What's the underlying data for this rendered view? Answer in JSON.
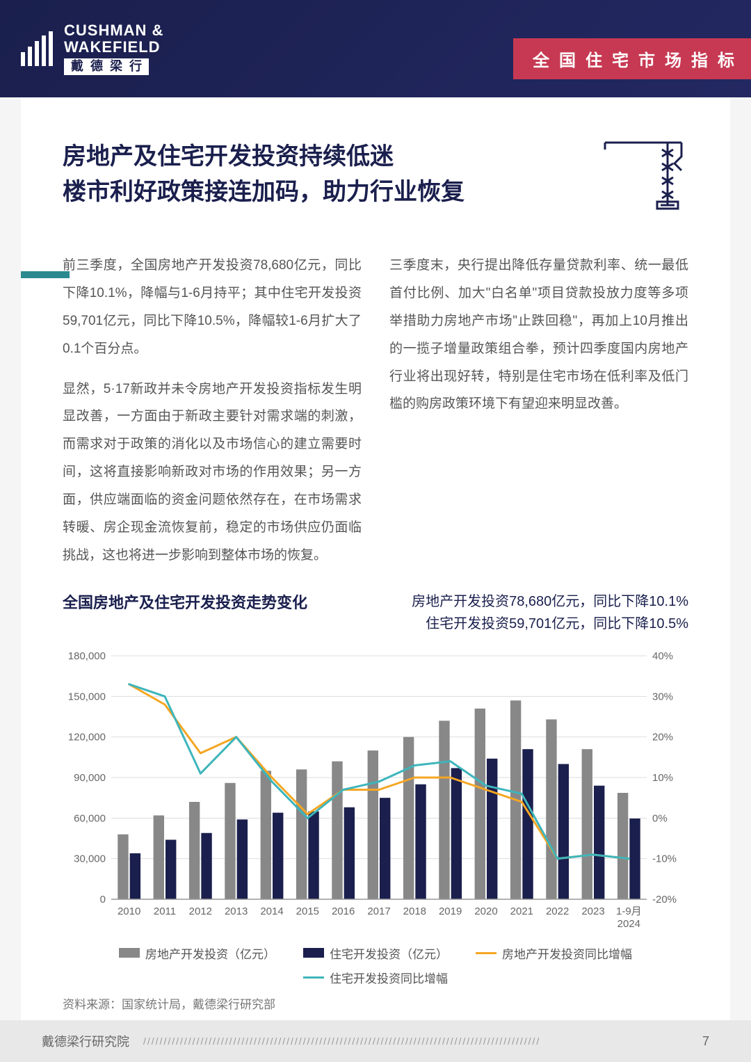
{
  "header": {
    "logo_en1": "CUSHMAN &",
    "logo_en2": "WAKEFIELD",
    "logo_cn": "戴德梁行",
    "tag": "全国住宅市场指标"
  },
  "title": {
    "line1": "房地产及住宅开发投资持续低迷",
    "line2": "楼市利好政策接连加码，助力行业恢复"
  },
  "body": {
    "p1": "前三季度，全国房地产开发投资78,680亿元，同比下降10.1%，降幅与1-6月持平；其中住宅开发投资59,701亿元，同比下降10.5%，降幅较1-6月扩大了0.1个百分点。",
    "p2": "显然，5·17新政并未令房地产开发投资指标发生明显改善，一方面由于新政主要针对需求端的刺激，而需求对于政策的消化以及市场信心的建立需要时间，这将直接影响新政对市场的作用效果；另一方面，供应端面临的资金问题依然存在，在市场需求转暖、房企现金流恢复前，稳定的市场供应仍面临挑战，这也将进一步影响到整体市场的恢复。",
    "p3": "三季度末，央行提出降低存量贷款利率、统一最低首付比例、加大\"白名单\"项目贷款投放力度等多项举措助力房地产市场\"止跌回稳\"，再加上10月推出的一揽子增量政策组合拳，预计四季度国内房地产行业将出现好转，特别是住宅市场在低利率及低门槛的购房政策环境下有望迎来明显改善。"
  },
  "chart": {
    "title_left": "全国房地产及住宅开发投资走势变化",
    "title_right_1": "房地产开发投资78,680亿元，同比下降10.1%",
    "title_right_2": "住宅开发投资59,701亿元，同比下降10.5%",
    "type": "combo-bar-line",
    "categories": [
      "2010",
      "2011",
      "2012",
      "2013",
      "2014",
      "2015",
      "2016",
      "2017",
      "2018",
      "2019",
      "2020",
      "2021",
      "2022",
      "2023",
      "1-9月\n2024"
    ],
    "y_left_ticks": [
      0,
      30000,
      60000,
      90000,
      120000,
      150000,
      180000
    ],
    "y_left_labels": [
      "0",
      "30,000",
      "60,000",
      "90,000",
      "120,000",
      "150,000",
      "180,000"
    ],
    "y_right_ticks": [
      -20,
      -10,
      0,
      10,
      20,
      30,
      40
    ],
    "y_right_labels": [
      "-20%",
      "-10%",
      "0%",
      "10%",
      "20%",
      "30%",
      "40%"
    ],
    "series": {
      "re_inv": {
        "label": "房地产开发投资（亿元）",
        "color": "#888888",
        "type": "bar",
        "values": [
          48000,
          62000,
          72000,
          86000,
          95000,
          96000,
          102000,
          110000,
          120000,
          132000,
          141000,
          147000,
          133000,
          111000,
          78680
        ]
      },
      "res_inv": {
        "label": "住宅开发投资（亿元）",
        "color": "#1a1f4d",
        "type": "bar",
        "values": [
          34000,
          44000,
          49000,
          59000,
          64000,
          65000,
          68000,
          75000,
          85000,
          97000,
          104000,
          111000,
          100000,
          84000,
          59701
        ]
      },
      "re_yoy": {
        "label": "房地产开发投资同比增幅",
        "color": "#f5a623",
        "type": "line",
        "values": [
          33,
          28,
          16,
          20,
          10,
          1,
          7,
          7,
          10,
          10,
          7,
          4,
          -10,
          -9,
          -10
        ]
      },
      "res_yoy": {
        "label": "住宅开发投资同比增幅",
        "color": "#3db5bb",
        "type": "line",
        "values": [
          33,
          30,
          11,
          20,
          9,
          0,
          7,
          9,
          13,
          14,
          8,
          6,
          -10,
          -9,
          -10
        ]
      }
    },
    "y_left_max": 180000,
    "y_right_min": -20,
    "y_right_max": 40,
    "grid_color": "#dddddd",
    "axis_color": "#999999",
    "label_color": "#666666",
    "label_fontsize": 15,
    "source": "资料来源：国家统计局，戴德梁行研究部"
  },
  "footer": {
    "label": "戴德梁行研究院",
    "page": "7"
  }
}
